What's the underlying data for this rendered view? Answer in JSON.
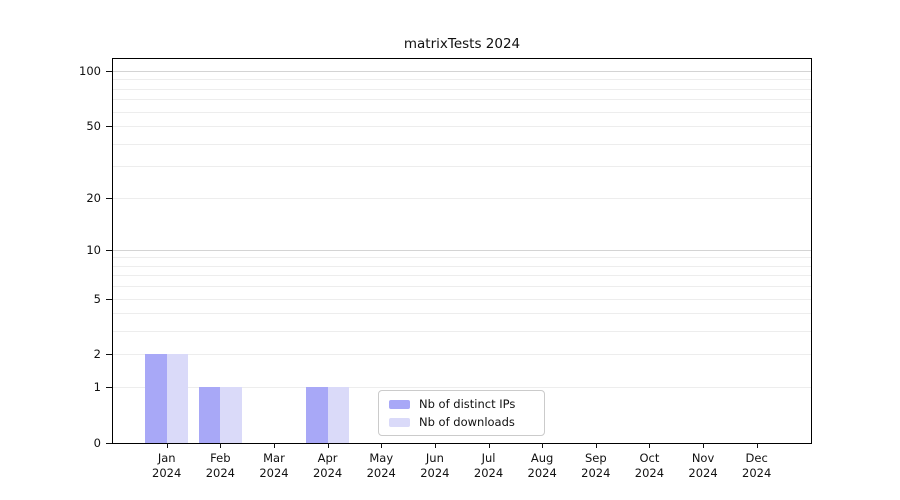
{
  "chart_data": {
    "type": "bar",
    "title": "matrixTests 2024",
    "categories": [
      "Jan",
      "Feb",
      "Mar",
      "Apr",
      "May",
      "Jun",
      "Jul",
      "Aug",
      "Sep",
      "Oct",
      "Nov",
      "Dec"
    ],
    "xtick_year": "2024",
    "series": [
      {
        "name": "Nb of distinct IPs",
        "color": "#a8a8f7",
        "values": [
          2,
          1,
          0,
          1,
          0,
          0,
          0,
          0,
          0,
          0,
          0,
          0
        ]
      },
      {
        "name": "Nb of downloads",
        "color": "#dadaf9",
        "values": [
          2,
          1,
          0,
          1,
          0,
          0,
          0,
          0,
          0,
          0,
          0,
          0
        ]
      }
    ],
    "yscale": "log1p",
    "ylim": [
      0,
      116
    ],
    "yticks": [
      100,
      50,
      20,
      10,
      5,
      2,
      1,
      0
    ],
    "minor_gridlines": [
      1,
      2,
      3,
      4,
      5,
      6,
      7,
      8,
      9,
      20,
      30,
      40,
      50,
      60,
      70,
      80,
      90
    ],
    "major_gridlines": [
      10,
      100
    ],
    "grid": true,
    "legend_position": "lower center"
  }
}
